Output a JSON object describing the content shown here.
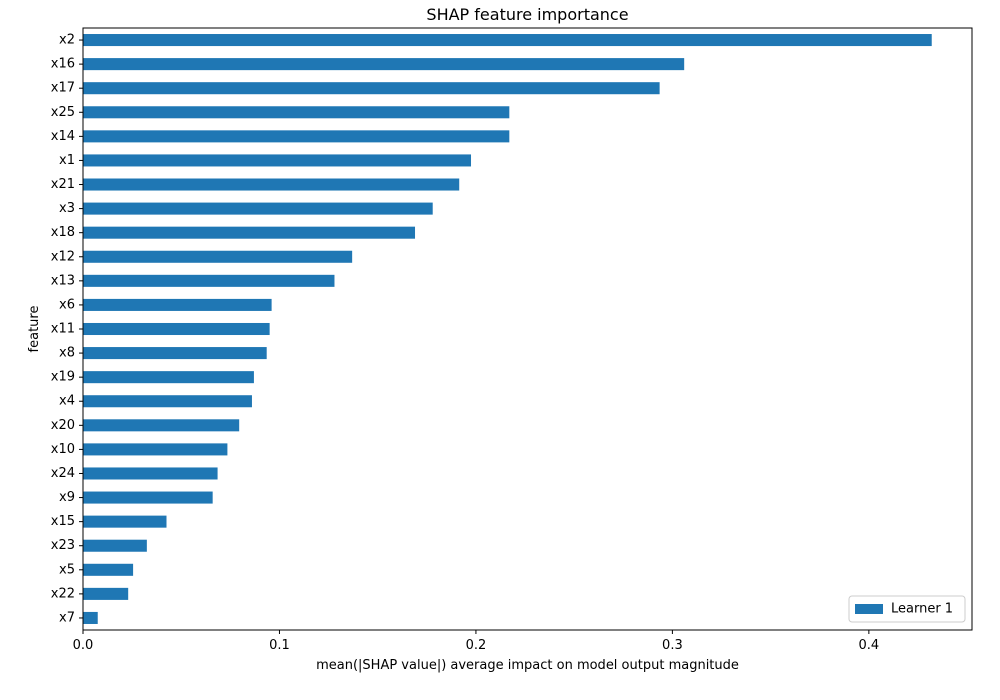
{
  "chart_data": {
    "type": "bar",
    "orientation": "horizontal",
    "title": "SHAP feature importance",
    "xlabel": "mean(|SHAP value|) average impact on model output magnitude",
    "ylabel": "feature",
    "xlim": [
      0,
      0.4525
    ],
    "xticks": [
      "0.0",
      "0.1",
      "0.2",
      "0.3",
      "0.4"
    ],
    "xtick_values": [
      0.0,
      0.1,
      0.2,
      0.3,
      0.4
    ],
    "categories": [
      "x2",
      "x16",
      "x17",
      "x25",
      "x14",
      "x1",
      "x21",
      "x3",
      "x18",
      "x12",
      "x13",
      "x6",
      "x11",
      "x8",
      "x19",
      "x4",
      "x20",
      "x10",
      "x24",
      "x9",
      "x15",
      "x23",
      "x5",
      "x22",
      "x7"
    ],
    "series": [
      {
        "name": "Learner 1",
        "color": "#1f77b4",
        "values": [
          0.432,
          0.306,
          0.2935,
          0.217,
          0.217,
          0.1975,
          0.1915,
          0.178,
          0.169,
          0.137,
          0.128,
          0.096,
          0.095,
          0.0935,
          0.087,
          0.086,
          0.0795,
          0.0735,
          0.0685,
          0.066,
          0.0425,
          0.0325,
          0.0255,
          0.023,
          0.0075
        ]
      }
    ],
    "legend": {
      "position": "bottom-right"
    },
    "grid": false
  }
}
